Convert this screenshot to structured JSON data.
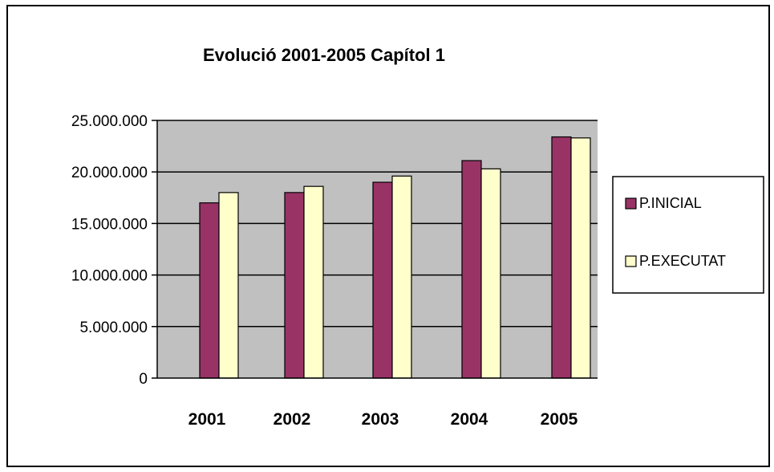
{
  "chart_data": {
    "type": "bar",
    "title": "Evolució 2001-2005 Capítol 1",
    "categories": [
      "2001",
      "2002",
      "2003",
      "2004",
      "2005"
    ],
    "series": [
      {
        "name": "P.INICIAL",
        "values": [
          17000000,
          18000000,
          19000000,
          21100000,
          23400000
        ],
        "color": "#993366"
      },
      {
        "name": "P.EXECUTAT",
        "values": [
          18000000,
          18600000,
          19600000,
          20300000,
          23300000
        ],
        "color": "#ffffcc"
      }
    ],
    "ylim": [
      0,
      25000000
    ],
    "yticks": [
      "0",
      "5.000.000",
      "10.000.000",
      "15.000.000",
      "20.000.000",
      "25.000.000"
    ],
    "plot_background": "#c0c0c0",
    "grid": true,
    "legend_position": "right"
  }
}
